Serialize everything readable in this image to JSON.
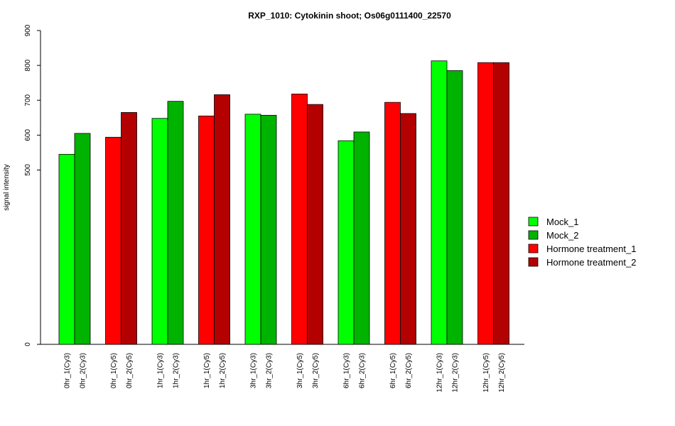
{
  "chart_data": {
    "type": "bar",
    "title": "RXP_1010: Cytokinin shoot; Os06g0111400_22570",
    "ylabel": "signal intensity",
    "xlabel": "",
    "ylim": [
      0,
      900
    ],
    "yticks": [
      0,
      500,
      600,
      700,
      800,
      900
    ],
    "grid": false,
    "legend_position": "right",
    "series": [
      {
        "name": "Mock_1",
        "color": "#00ff00"
      },
      {
        "name": "Mock_2",
        "color": "#00b300"
      },
      {
        "name": "Hormone treatment_1",
        "color": "#ff0000"
      },
      {
        "name": "Hormone treatment_2",
        "color": "#b30000"
      }
    ],
    "groups": [
      {
        "bars": [
          {
            "label": "0hr_1(Cy3)",
            "value": 545,
            "series": 0
          },
          {
            "label": "0hr_2(Cy3)",
            "value": 605,
            "series": 1
          }
        ]
      },
      {
        "bars": [
          {
            "label": "0hr_1(Cy5)",
            "value": 594,
            "series": 2
          },
          {
            "label": "0hr_2(Cy5)",
            "value": 665,
            "series": 3
          }
        ]
      },
      {
        "bars": [
          {
            "label": "1hr_1(Cy3)",
            "value": 648,
            "series": 0
          },
          {
            "label": "1hr_2(Cy3)",
            "value": 697,
            "series": 1
          }
        ]
      },
      {
        "bars": [
          {
            "label": "1hr_1(Cy5)",
            "value": 655,
            "series": 2
          },
          {
            "label": "1hr_2(Cy5)",
            "value": 716,
            "series": 3
          }
        ]
      },
      {
        "bars": [
          {
            "label": "3hr_1(Cy3)",
            "value": 660,
            "series": 0
          },
          {
            "label": "3hr_2(Cy3)",
            "value": 657,
            "series": 1
          }
        ]
      },
      {
        "bars": [
          {
            "label": "3hr_1(Cy5)",
            "value": 718,
            "series": 2
          },
          {
            "label": "3hr_2(Cy5)",
            "value": 688,
            "series": 3
          }
        ]
      },
      {
        "bars": [
          {
            "label": "6hr_1(Cy3)",
            "value": 584,
            "series": 0
          },
          {
            "label": "6hr_2(Cy3)",
            "value": 609,
            "series": 1
          }
        ]
      },
      {
        "bars": [
          {
            "label": "6hr_1(Cy5)",
            "value": 694,
            "series": 2
          },
          {
            "label": "6hr_2(Cy5)",
            "value": 662,
            "series": 3
          }
        ]
      },
      {
        "bars": [
          {
            "label": "12hr_1(Cy3)",
            "value": 813,
            "series": 0
          },
          {
            "label": "12hr_2(Cy3)",
            "value": 785,
            "series": 1
          }
        ]
      },
      {
        "bars": [
          {
            "label": "12hr_1(Cy5)",
            "value": 808,
            "series": 2
          },
          {
            "label": "12hr_2(Cy5)",
            "value": 808,
            "series": 3
          }
        ]
      }
    ]
  }
}
